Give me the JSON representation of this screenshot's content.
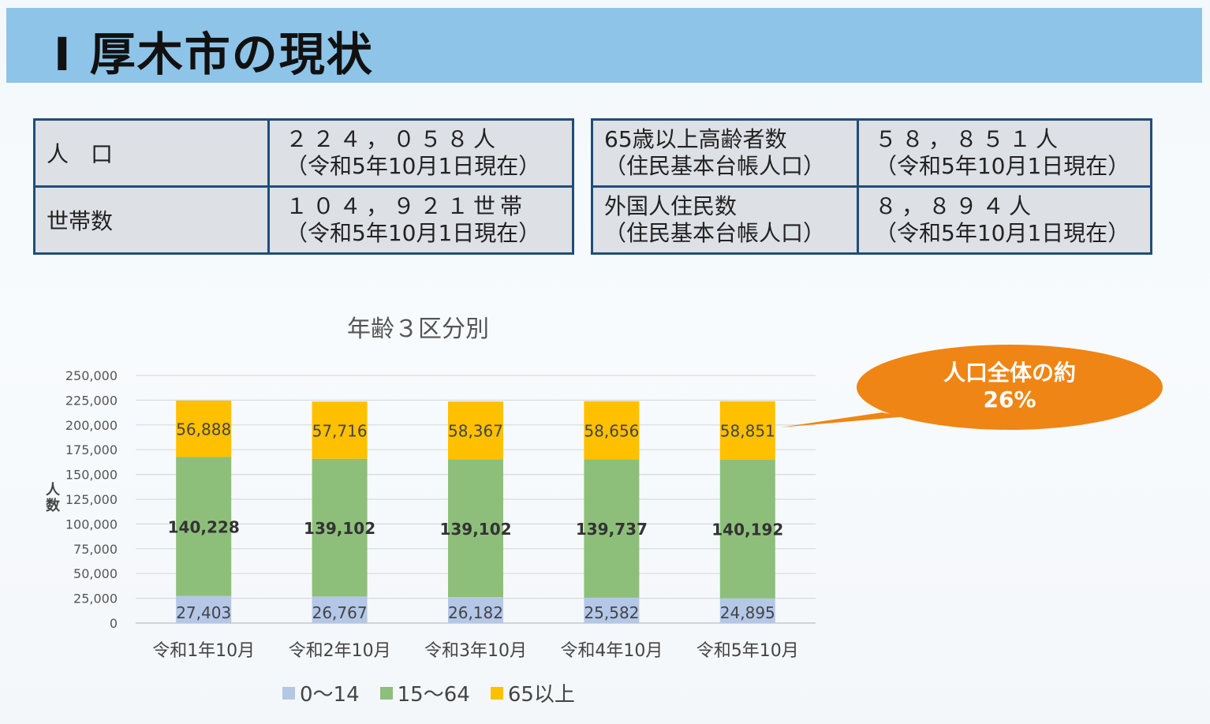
{
  "header": {
    "title": "Ⅰ 厚木市の現状"
  },
  "table_left": [
    {
      "label": "人　口",
      "value": "２２４，０５８人",
      "note": "（令和5年10月1日現在）"
    },
    {
      "label": "世帯数",
      "value": "１０４，９２１世帯",
      "note": "（令和5年10月1日現在）"
    }
  ],
  "table_right": [
    {
      "label": "65歳以上高齢者数",
      "label_note": "（住民基本台帳人口）",
      "value": "５８，８５１人",
      "note": "（令和5年10月1日現在）"
    },
    {
      "label": "外国人住民数",
      "label_note": "（住民基本台帳人口）",
      "value": "８，８９４人",
      "note": "（令和5年10月1日現在）"
    }
  ],
  "callout": {
    "line1": "人口全体の約",
    "line2": "26%",
    "color": "#ef8514"
  },
  "chart_data": {
    "type": "bar",
    "stacked": true,
    "title": "年齢３区分別",
    "ylabel": "人数",
    "ylim": [
      0,
      250000
    ],
    "yticks": [
      "0",
      "25,000",
      "50,000",
      "75,000",
      "100,000",
      "125,000",
      "150,000",
      "175,000",
      "200,000",
      "225,000",
      "250,000"
    ],
    "categories": [
      "令和1年10月",
      "令和2年10月",
      "令和3年10月",
      "令和4年10月",
      "令和5年10月"
    ],
    "series": [
      {
        "name": "0～14",
        "color": "#b4c7e7",
        "values": [
          27403,
          26767,
          26182,
          25582,
          24895
        ],
        "labels": [
          "27,403",
          "26,767",
          "26,182",
          "25,582",
          "24,895"
        ]
      },
      {
        "name": "15～64",
        "color": "#8dbf7a",
        "values": [
          140228,
          139102,
          139102,
          139737,
          140192
        ],
        "labels": [
          "140,228",
          "139,102",
          "139,102",
          "139,737",
          "140,192"
        ]
      },
      {
        "name": "65以上",
        "color": "#ffc000",
        "values": [
          56888,
          57716,
          58367,
          58656,
          58851
        ],
        "labels": [
          "56,888",
          "57,716",
          "58,367",
          "58,656",
          "58,851"
        ]
      }
    ],
    "grid": true,
    "legend": "bottom"
  }
}
